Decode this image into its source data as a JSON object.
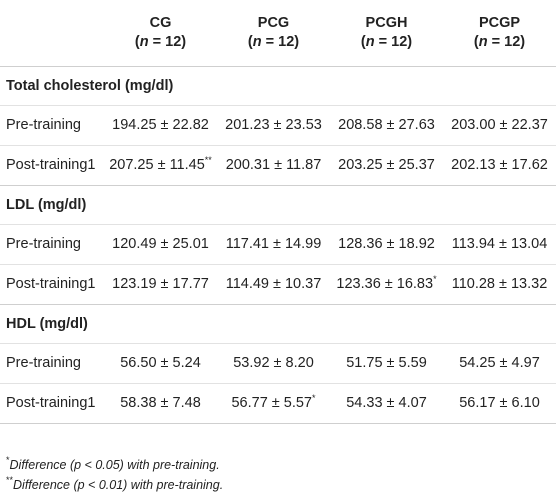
{
  "table": {
    "columns": [
      {
        "name": "CG",
        "sub": [
          "(",
          "n",
          " = 12)"
        ]
      },
      {
        "name": "PCG",
        "sub": [
          "(",
          "n",
          " = 12)"
        ]
      },
      {
        "name": "PCGH",
        "sub": [
          "(",
          "n",
          " = 12)"
        ]
      },
      {
        "name": "PCGP",
        "sub": [
          "(",
          "n",
          " = 12)"
        ]
      }
    ],
    "sections": [
      {
        "title": "Total cholesterol (mg/dl)",
        "rows": [
          {
            "label": "Pre-training",
            "cells": [
              {
                "text": "194.25 ± 22.82"
              },
              {
                "text": "201.23 ± 23.53"
              },
              {
                "text": "208.58 ± 27.63"
              },
              {
                "text": "203.00 ± 22.37"
              }
            ]
          },
          {
            "label": "Post-training1",
            "cells": [
              {
                "text": "207.25 ± 11.45",
                "mark": "**"
              },
              {
                "text": "200.31 ± 11.87"
              },
              {
                "text": "203.25 ± 25.37"
              },
              {
                "text": "202.13 ± 17.62"
              }
            ]
          }
        ]
      },
      {
        "title": "LDL (mg/dl)",
        "rows": [
          {
            "label": "Pre-training",
            "cells": [
              {
                "text": "120.49 ± 25.01"
              },
              {
                "text": "117.41 ± 14.99"
              },
              {
                "text": "128.36 ± 18.92"
              },
              {
                "text": "113.94 ± 13.04"
              }
            ]
          },
          {
            "label": "Post-training1",
            "cells": [
              {
                "text": "123.19 ± 17.77"
              },
              {
                "text": "114.49 ± 10.37"
              },
              {
                "text": "123.36 ± 16.83",
                "mark": "*"
              },
              {
                "text": "110.28 ± 13.32"
              }
            ]
          }
        ]
      },
      {
        "title": "HDL (mg/dl)",
        "rows": [
          {
            "label": "Pre-training",
            "cells": [
              {
                "text": "56.50 ± 5.24"
              },
              {
                "text": "53.92 ± 8.20"
              },
              {
                "text": "51.75 ± 5.59"
              },
              {
                "text": "54.25 ± 4.97"
              }
            ]
          },
          {
            "label": "Post-training1",
            "cells": [
              {
                "text": "58.38 ± 7.48"
              },
              {
                "text": "56.77 ± 5.57",
                "mark": "*"
              },
              {
                "text": "54.33 ± 4.07"
              },
              {
                "text": "56.17 ± 6.10"
              }
            ]
          }
        ]
      }
    ],
    "footnotes": [
      {
        "mark": "*",
        "parts": [
          "Difference (",
          "p",
          " < 0.05) with pre-training."
        ]
      },
      {
        "mark": "**",
        "parts": [
          "Difference (",
          "p",
          " < 0.01) with pre-training."
        ]
      }
    ]
  }
}
